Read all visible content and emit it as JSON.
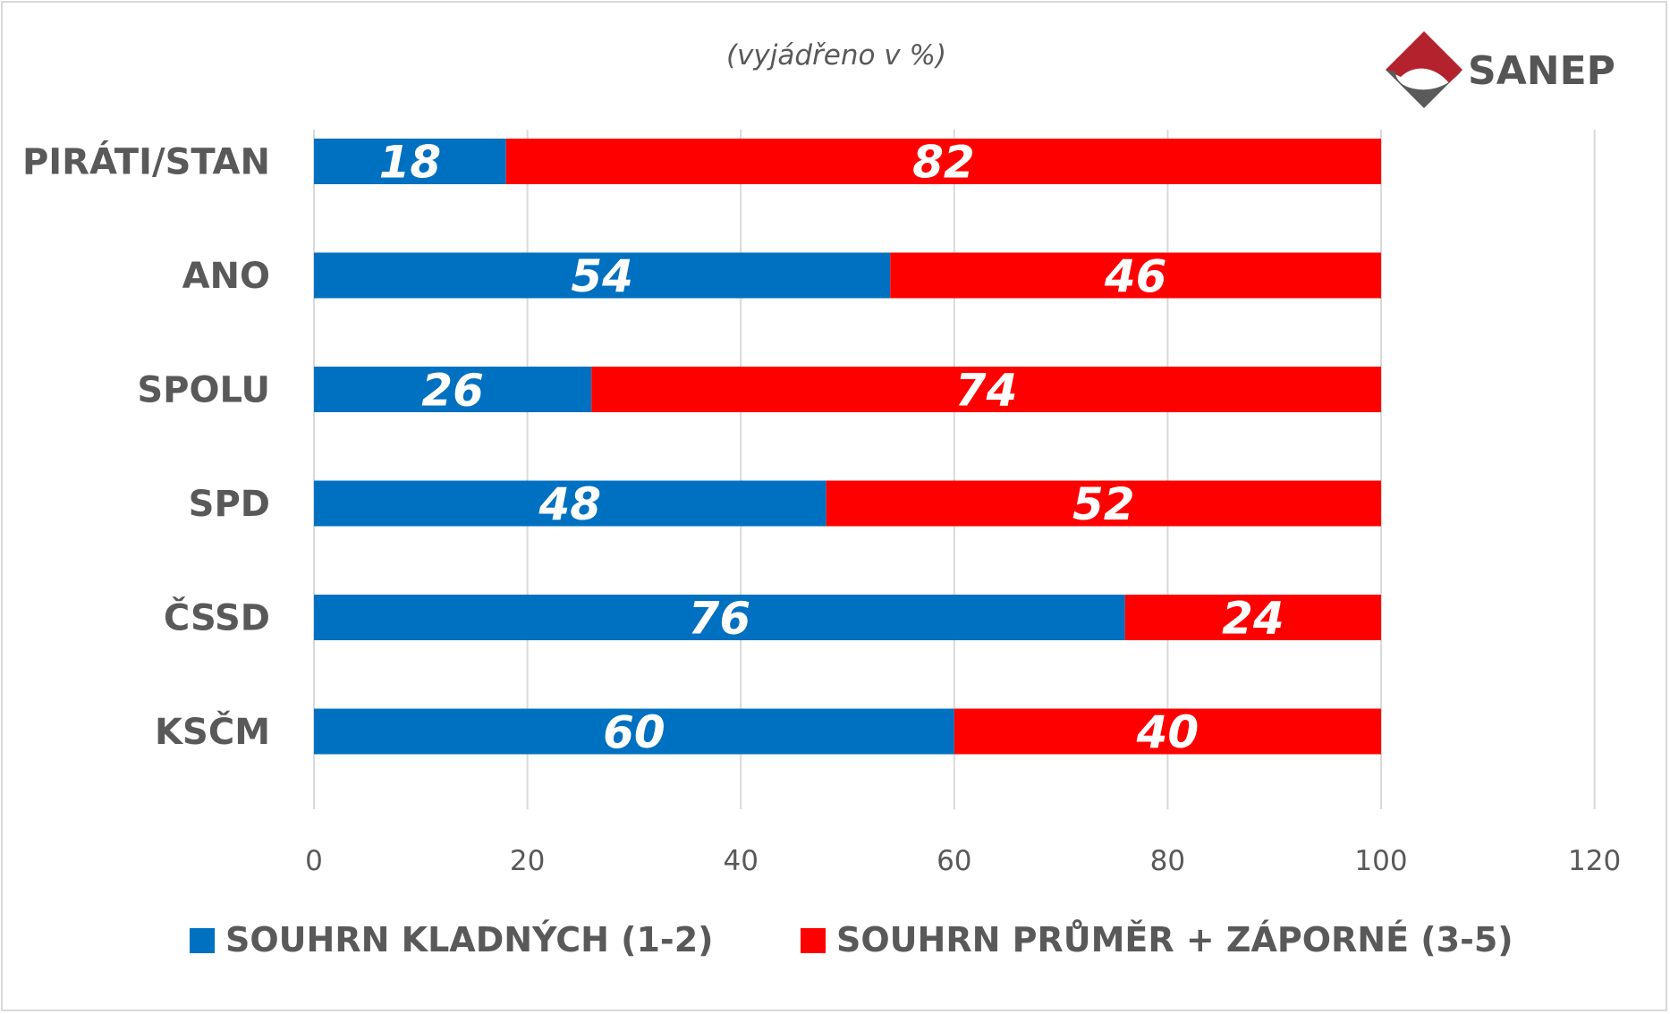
{
  "logo": {
    "text": "SANEP",
    "colors": {
      "mark_top": "#b4232d",
      "mark_bottom": "#5a5a5a"
    }
  },
  "chart_data": {
    "type": "bar",
    "orientation": "horizontal",
    "stacked": true,
    "subtitle": "(vyjádřeno v %)",
    "categories": [
      "PIRÁTI/STAN",
      "ANO",
      "SPOLU",
      "SPD",
      "ČSSD",
      "KSČM"
    ],
    "series": [
      {
        "name": "SOUHRN KLADNÝCH (1-2)",
        "color": "#0070c0",
        "values": [
          18,
          54,
          26,
          48,
          76,
          60
        ]
      },
      {
        "name": "SOUHRN PRŮMĚR + ZÁPORNÉ (3-5)",
        "color": "#ff0000",
        "values": [
          82,
          46,
          74,
          52,
          24,
          40
        ]
      }
    ],
    "xlim": [
      0,
      120
    ],
    "xticks": [
      0,
      20,
      40,
      60,
      80,
      100,
      120
    ],
    "grid": true,
    "legend_position": "bottom"
  }
}
